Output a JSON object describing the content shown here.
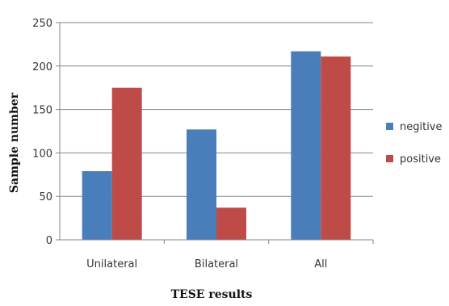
{
  "chart_data": {
    "type": "bar",
    "categories": [
      "Unilateral",
      "Bilateral",
      "All"
    ],
    "series": [
      {
        "name": "negitive",
        "values": [
          79,
          127,
          217
        ],
        "color": "#4a7ebb"
      },
      {
        "name": "positive",
        "values": [
          175,
          37,
          211
        ],
        "color": "#be4b48"
      }
    ],
    "xlabel": "TESE results",
    "ylabel": "Sample number",
    "ylim": [
      0,
      250
    ],
    "yticks": [
      0,
      50,
      100,
      150,
      200,
      250
    ],
    "grid": true,
    "legend": "right"
  }
}
